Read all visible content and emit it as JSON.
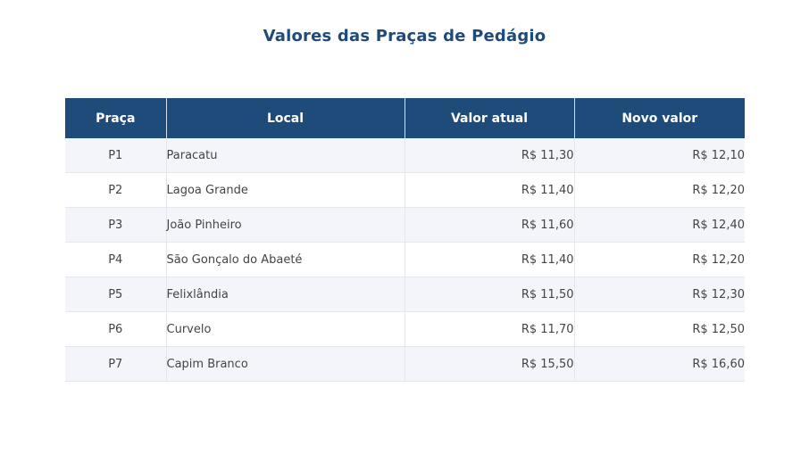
{
  "title": "Valores das Praças de Pedágio",
  "chart_data": {
    "type": "table",
    "title": "Valores das Praças de Pedágio",
    "columns": [
      "Praça",
      "Local",
      "Valor atual",
      "Novo valor"
    ],
    "rows": [
      [
        "P1",
        "Paracatu",
        "R$ 11,30",
        "R$ 12,10"
      ],
      [
        "P2",
        "Lagoa Grande",
        "R$ 11,40",
        "R$ 12,20"
      ],
      [
        "P3",
        "João Pinheiro",
        "R$ 11,60",
        "R$ 12,40"
      ],
      [
        "P4",
        "São Gonçalo do Abaeté",
        "R$ 11,40",
        "R$ 12,20"
      ],
      [
        "P5",
        "Felixlândia",
        "R$ 11,50",
        "R$ 12,30"
      ],
      [
        "P6",
        "Curvelo",
        "R$ 11,70",
        "R$ 12,50"
      ],
      [
        "P7",
        "Capim Branco",
        "R$ 15,50",
        "R$ 16,60"
      ]
    ]
  },
  "colors": {
    "header_bg": "#1f4b7a",
    "header_text": "#ffffff",
    "title_text": "#1f4b7a",
    "row_alt_bg": "#f3f5fa"
  }
}
